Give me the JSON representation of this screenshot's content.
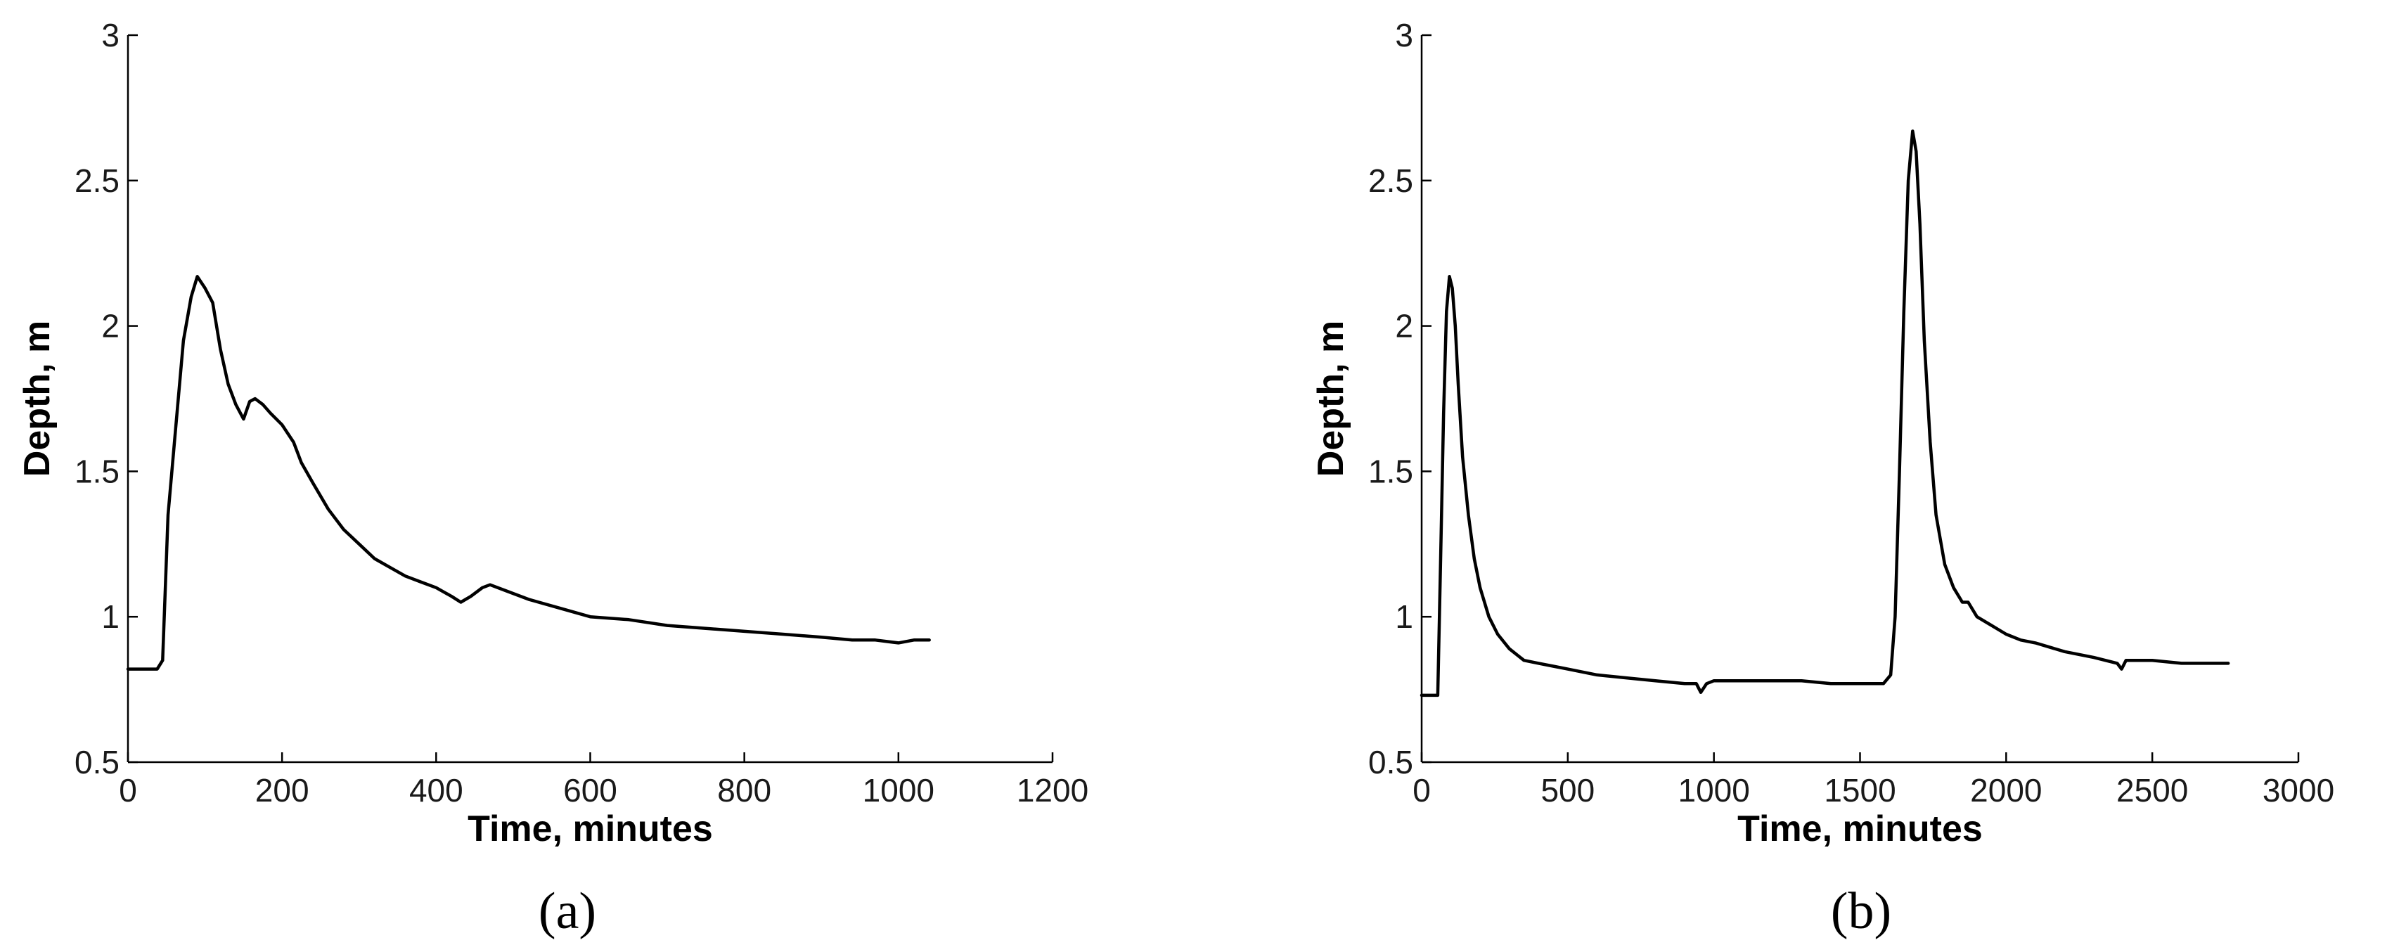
{
  "chart_data": [
    {
      "type": "line",
      "panel_label": "(a)",
      "xlabel": "Time, minutes",
      "ylabel": "Depth, m",
      "xlim": [
        0,
        1200
      ],
      "ylim": [
        0.5,
        3
      ],
      "xticks": [
        0,
        200,
        400,
        600,
        800,
        1000,
        1200
      ],
      "yticks": [
        0.5,
        1,
        1.5,
        2,
        2.5,
        3
      ],
      "xtick_labels": [
        "0",
        "200",
        "400",
        "600",
        "800",
        "1000",
        "1200"
      ],
      "ytick_labels": [
        "0.5",
        "1",
        "1.5",
        "2",
        "2.5",
        "3"
      ],
      "grid": false,
      "series": [
        {
          "x": [
            0,
            20,
            38,
            45,
            52,
            62,
            72,
            82,
            90,
            100,
            110,
            120,
            130,
            140,
            150,
            158,
            165,
            175,
            185,
            200,
            215,
            225,
            240,
            260,
            280,
            300,
            320,
            340,
            360,
            380,
            400,
            420,
            432,
            445,
            460,
            470,
            490,
            520,
            560,
            600,
            650,
            700,
            750,
            800,
            850,
            900,
            940,
            970,
            1000,
            1020,
            1040
          ],
          "y": [
            0.82,
            0.82,
            0.82,
            0.85,
            1.35,
            1.65,
            1.95,
            2.1,
            2.17,
            2.13,
            2.08,
            1.92,
            1.8,
            1.73,
            1.68,
            1.74,
            1.75,
            1.73,
            1.7,
            1.66,
            1.6,
            1.53,
            1.46,
            1.37,
            1.3,
            1.25,
            1.2,
            1.17,
            1.14,
            1.12,
            1.1,
            1.07,
            1.05,
            1.07,
            1.1,
            1.11,
            1.09,
            1.06,
            1.03,
            1.0,
            0.99,
            0.97,
            0.96,
            0.95,
            0.94,
            0.93,
            0.92,
            0.92,
            0.91,
            0.92,
            0.92
          ]
        }
      ]
    },
    {
      "type": "line",
      "panel_label": "(b)",
      "xlabel": "Time, minutes",
      "ylabel": "Depth, m",
      "xlim": [
        0,
        3000
      ],
      "ylim": [
        0.5,
        3
      ],
      "xticks": [
        0,
        500,
        1000,
        1500,
        2000,
        2500,
        3000
      ],
      "yticks": [
        0.5,
        1,
        1.5,
        2,
        2.5,
        3
      ],
      "xtick_labels": [
        "0",
        "500",
        "1000",
        "1500",
        "2000",
        "2500",
        "3000"
      ],
      "ytick_labels": [
        "0.5",
        "1",
        "1.5",
        "2",
        "2.5",
        "3"
      ],
      "grid": false,
      "series": [
        {
          "x": [
            0,
            40,
            55,
            65,
            75,
            85,
            95,
            105,
            115,
            125,
            140,
            160,
            180,
            200,
            230,
            260,
            300,
            350,
            400,
            450,
            500,
            600,
            700,
            800,
            900,
            940,
            955,
            975,
            1000,
            1100,
            1200,
            1300,
            1400,
            1500,
            1580,
            1605,
            1620,
            1635,
            1650,
            1665,
            1680,
            1692,
            1705,
            1720,
            1740,
            1760,
            1790,
            1820,
            1850,
            1870,
            1900,
            1950,
            2000,
            2050,
            2100,
            2200,
            2300,
            2380,
            2395,
            2410,
            2500,
            2600,
            2700,
            2760
          ],
          "y": [
            0.73,
            0.73,
            0.73,
            1.2,
            1.7,
            2.05,
            2.17,
            2.13,
            2.0,
            1.8,
            1.55,
            1.35,
            1.2,
            1.1,
            1.0,
            0.94,
            0.89,
            0.85,
            0.84,
            0.83,
            0.82,
            0.8,
            0.79,
            0.78,
            0.77,
            0.77,
            0.74,
            0.77,
            0.78,
            0.78,
            0.78,
            0.78,
            0.77,
            0.77,
            0.77,
            0.8,
            1.0,
            1.5,
            2.05,
            2.5,
            2.67,
            2.6,
            2.35,
            1.95,
            1.6,
            1.35,
            1.18,
            1.1,
            1.05,
            1.05,
            1.0,
            0.97,
            0.94,
            0.92,
            0.91,
            0.88,
            0.86,
            0.84,
            0.82,
            0.85,
            0.85,
            0.84,
            0.84,
            0.84
          ]
        }
      ]
    }
  ]
}
